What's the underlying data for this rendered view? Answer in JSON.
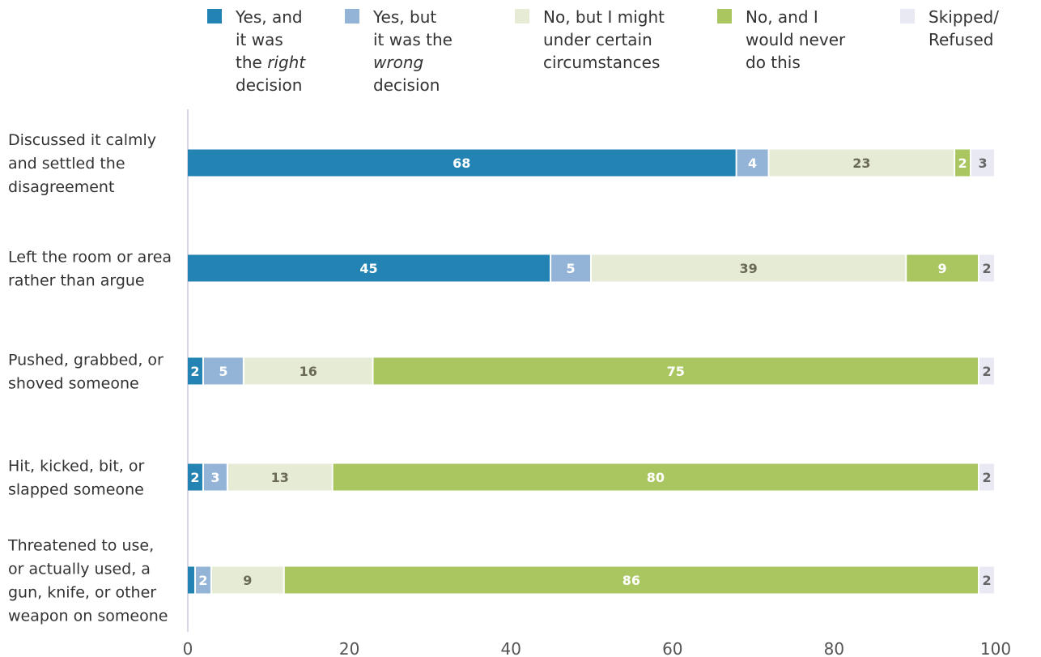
{
  "chart_data": {
    "type": "bar",
    "orientation": "horizontal",
    "stacked": true,
    "categories": [
      [
        "Discussed it calmly",
        "and settled the",
        "disagreement"
      ],
      [
        "Left the room or area",
        "rather than argue"
      ],
      [
        "Pushed, grabbed, or",
        "shoved someone"
      ],
      [
        "Hit, kicked, bit, or",
        "slapped someone"
      ],
      [
        "Threatened to use,",
        "or actually used, a",
        "gun, knife, or other",
        "weapon on someone"
      ]
    ],
    "series": [
      {
        "name": [
          "Yes, and",
          "it was",
          "the right",
          "decision"
        ],
        "italic_word": "right",
        "color": "#2383b3",
        "label_color": "#ffffff",
        "values": [
          68,
          45,
          2,
          2,
          1
        ]
      },
      {
        "name": [
          "Yes, but",
          "it was the",
          "wrong",
          "decision"
        ],
        "italic_word": "wrong",
        "color": "#93b4d6",
        "label_color": "#ffffff",
        "values": [
          4,
          5,
          5,
          3,
          2
        ]
      },
      {
        "name": [
          "No, but I might",
          "under certain",
          "circumstances"
        ],
        "color": "#e6ebd5",
        "label_color": "#6b6b55",
        "values": [
          23,
          39,
          16,
          13,
          9
        ]
      },
      {
        "name": [
          "No, and I",
          "would never",
          "do this"
        ],
        "color": "#a9c660",
        "label_color": "#ffffff",
        "values": [
          2,
          9,
          75,
          80,
          86
        ]
      },
      {
        "name": [
          "Skipped/",
          "Refused"
        ],
        "color": "#e9e9f4",
        "label_color": "#666666",
        "values": [
          3,
          2,
          2,
          2,
          2
        ]
      }
    ],
    "hidden_labels": [
      [
        4,
        0
      ]
    ],
    "xlim": [
      0,
      100
    ],
    "xticks": [
      0,
      20,
      40,
      60,
      80,
      100
    ],
    "grid": false,
    "legend_position": "top"
  }
}
